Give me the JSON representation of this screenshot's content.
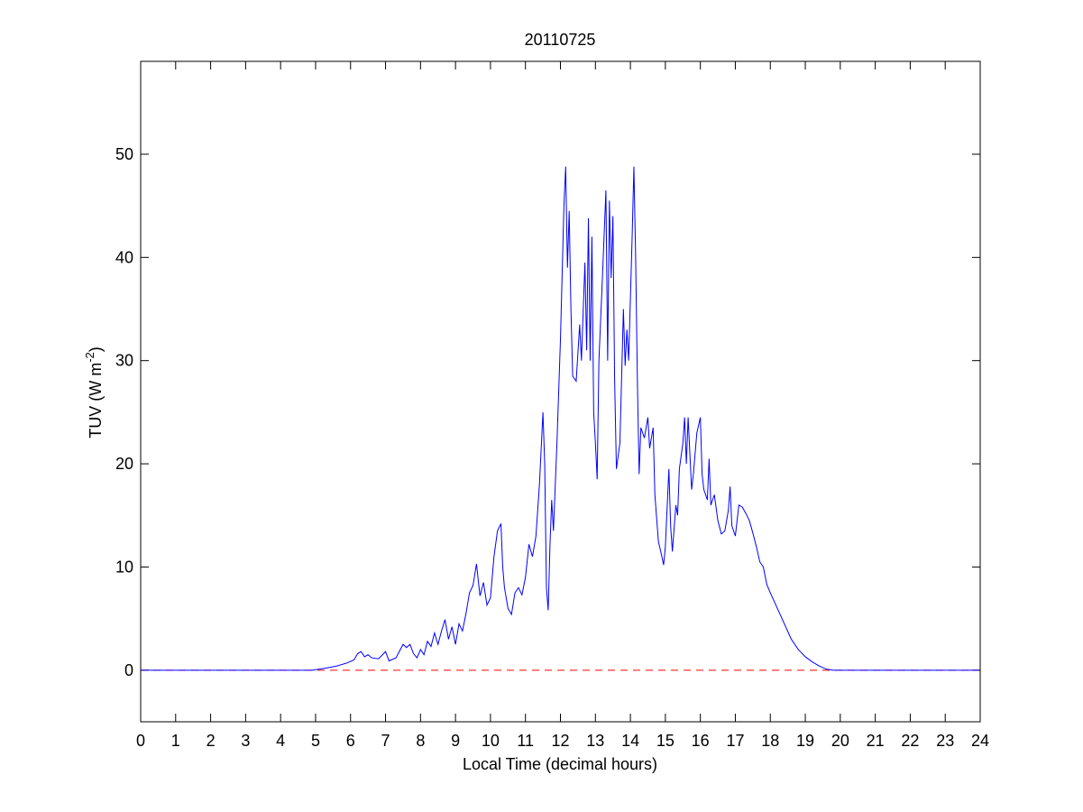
{
  "chart_data": {
    "type": "line",
    "title": "20110725",
    "xlabel": "Local Time (decimal hours)",
    "ylabel": "TUV (W m",
    "ylabel_superscript": "-2",
    "ylabel_suffix": ")",
    "xlim": [
      0,
      24
    ],
    "xticks": [
      0,
      1,
      2,
      3,
      4,
      5,
      6,
      7,
      8,
      9,
      10,
      11,
      12,
      13,
      14,
      15,
      16,
      17,
      18,
      19,
      20,
      21,
      22,
      23,
      24
    ],
    "ylim": [
      -5,
      59
    ],
    "yticks": [
      0,
      10,
      20,
      30,
      40,
      50
    ],
    "reference_line": {
      "value": 0,
      "color": "#ff0000",
      "style": "dashed"
    },
    "series": [
      {
        "color": "#0000ff",
        "x": [
          0,
          4.9,
          5.0,
          5.3,
          5.6,
          5.9,
          6.1,
          6.2,
          6.3,
          6.4,
          6.5,
          6.6,
          6.8,
          7.0,
          7.1,
          7.3,
          7.5,
          7.6,
          7.7,
          7.8,
          7.9,
          8.0,
          8.1,
          8.2,
          8.3,
          8.4,
          8.5,
          8.6,
          8.7,
          8.8,
          8.9,
          9.0,
          9.1,
          9.2,
          9.3,
          9.4,
          9.5,
          9.6,
          9.7,
          9.8,
          9.9,
          10.0,
          10.1,
          10.2,
          10.3,
          10.35,
          10.4,
          10.5,
          10.6,
          10.7,
          10.8,
          10.9,
          11.0,
          11.1,
          11.2,
          11.3,
          11.4,
          11.5,
          11.55,
          11.6,
          11.65,
          11.7,
          11.75,
          11.8,
          11.9,
          12.0,
          12.1,
          12.15,
          12.2,
          12.25,
          12.3,
          12.35,
          12.45,
          12.55,
          12.6,
          12.7,
          12.75,
          12.8,
          12.85,
          12.9,
          12.95,
          13.0,
          13.05,
          13.1,
          13.2,
          13.3,
          13.35,
          13.4,
          13.45,
          13.5,
          13.55,
          13.6,
          13.7,
          13.8,
          13.85,
          13.9,
          13.95,
          14.05,
          14.1,
          14.15,
          14.2,
          14.25,
          14.3,
          14.4,
          14.5,
          14.55,
          14.65,
          14.7,
          14.8,
          14.9,
          14.95,
          15.0,
          15.1,
          15.15,
          15.2,
          15.3,
          15.35,
          15.4,
          15.5,
          15.55,
          15.6,
          15.65,
          15.75,
          15.8,
          15.9,
          16.0,
          16.05,
          16.1,
          16.2,
          16.25,
          16.3,
          16.4,
          16.5,
          16.6,
          16.7,
          16.8,
          16.85,
          16.9,
          17.0,
          17.1,
          17.2,
          17.3,
          17.4,
          17.5,
          17.6,
          17.7,
          17.8,
          17.9,
          18.0,
          18.2,
          18.4,
          18.6,
          18.8,
          19.0,
          19.2,
          19.4,
          19.6,
          19.8,
          24
        ],
        "values": [
          0,
          0,
          0.05,
          0.2,
          0.4,
          0.7,
          1.0,
          1.6,
          1.8,
          1.3,
          1.5,
          1.2,
          1.1,
          1.8,
          0.9,
          1.2,
          2.5,
          2.2,
          2.5,
          1.6,
          1.2,
          2.0,
          1.5,
          2.8,
          2.3,
          3.6,
          2.5,
          3.8,
          4.9,
          3.0,
          4.2,
          2.5,
          4.5,
          3.8,
          5.5,
          7.5,
          8.2,
          10.3,
          7.2,
          8.5,
          6.3,
          7.0,
          11.0,
          13.5,
          14.2,
          10.0,
          8.0,
          6.0,
          5.4,
          7.5,
          8.0,
          7.3,
          9.0,
          12.2,
          11.0,
          13.0,
          18.0,
          25.0,
          20.0,
          8.0,
          5.8,
          12.0,
          16.5,
          13.5,
          22.0,
          32.0,
          45.0,
          48.8,
          39.0,
          44.5,
          35.0,
          28.5,
          28.0,
          33.5,
          30.0,
          39.5,
          31.0,
          43.8,
          30.0,
          42.0,
          25.0,
          22.0,
          18.5,
          30.0,
          38.0,
          46.5,
          30.0,
          45.5,
          38.0,
          44.0,
          28.0,
          19.5,
          22.0,
          35.0,
          29.5,
          33.0,
          30.0,
          42.0,
          48.8,
          40.0,
          28.0,
          19.0,
          23.5,
          22.5,
          24.5,
          21.5,
          23.5,
          17.0,
          12.5,
          11.0,
          10.2,
          12.0,
          19.5,
          14.0,
          11.5,
          16.0,
          15.0,
          19.5,
          22.0,
          24.5,
          20.0,
          24.5,
          17.5,
          19.0,
          23.0,
          24.5,
          19.0,
          17.5,
          16.5,
          20.5,
          16.0,
          17.0,
          14.5,
          13.2,
          13.5,
          15.5,
          17.8,
          14.0,
          13.0,
          16.0,
          15.8,
          15.2,
          14.5,
          13.3,
          12.0,
          10.5,
          10.0,
          8.3,
          7.5,
          6.0,
          4.5,
          3.0,
          2.0,
          1.3,
          0.8,
          0.4,
          0.1,
          0.0,
          0
        ]
      }
    ]
  }
}
